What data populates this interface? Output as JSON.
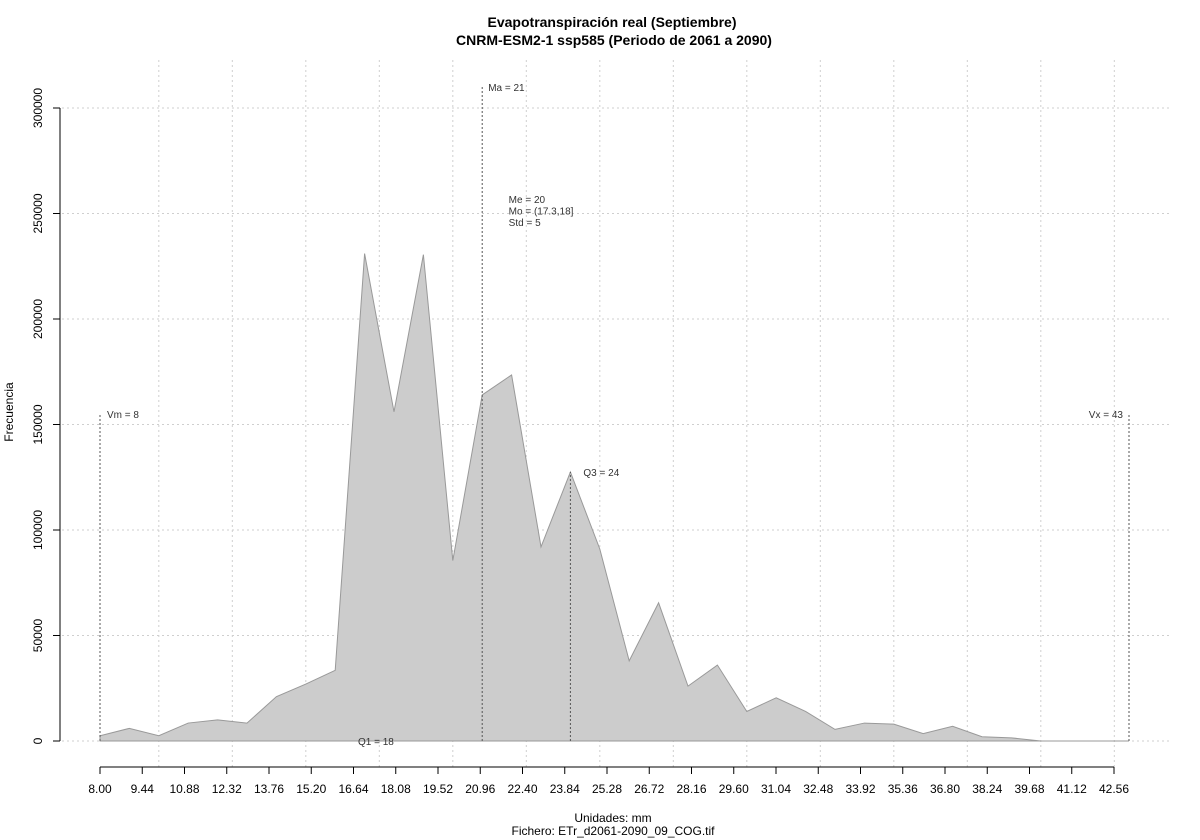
{
  "chart_data": {
    "type": "area",
    "title": "Evapotranspiración real (Septiembre)",
    "subtitle": "CNRM-ESM2-1 ssp585 (Periodo de 2061 a 2090)",
    "xlabel": "Unidades: mm",
    "ylabel": "Frecuencia",
    "footer": "Fichero: ETr_d2061-2090_09_COG.tif",
    "xlim": [
      8.0,
      43.0
    ],
    "ylim": [
      0,
      300000
    ],
    "x_ticks": [
      "8.00",
      "9.44",
      "10.88",
      "12.32",
      "13.76",
      "15.20",
      "16.64",
      "18.08",
      "19.52",
      "20.96",
      "22.40",
      "23.84",
      "25.28",
      "26.72",
      "28.16",
      "29.60",
      "31.04",
      "32.48",
      "33.92",
      "35.36",
      "36.80",
      "38.24",
      "39.68",
      "41.12",
      "42.56"
    ],
    "y_ticks": [
      {
        "value": 0,
        "label": "0"
      },
      {
        "value": 50000,
        "label": "50000"
      },
      {
        "value": 100000,
        "label": "100000"
      },
      {
        "value": 150000,
        "label": "150000"
      },
      {
        "value": 200000,
        "label": "200000"
      },
      {
        "value": 250000,
        "label": "250000"
      },
      {
        "value": 300000,
        "label": "300000"
      }
    ],
    "grid": true,
    "fill_color": "#cccccc",
    "line_color": "#999999",
    "series": [
      {
        "x": [
          8.0,
          9.0,
          10.0,
          11.0,
          12.0,
          13.0,
          14.0,
          15.0,
          16.0,
          17.0,
          18.0,
          19.0,
          20.0,
          21.0,
          22.0,
          23.0,
          24.0,
          25.0,
          26.0,
          27.0,
          28.0,
          29.0,
          30.0,
          31.0,
          32.0,
          33.0,
          34.0,
          35.0,
          36.0,
          37.0,
          38.0,
          39.0,
          40.0,
          41.0,
          42.0,
          43.0
        ],
        "y": [
          2500,
          6000,
          2500,
          8500,
          10000,
          8500,
          21000,
          27000,
          33500,
          231000,
          156000,
          230500,
          85500,
          164000,
          173500,
          92000,
          127500,
          91000,
          38000,
          65500,
          26000,
          36000,
          14000,
          20500,
          14000,
          5500,
          8500,
          8000,
          3500,
          7000,
          2000,
          1500,
          0,
          0,
          0,
          0
        ]
      }
    ],
    "annotations": [
      {
        "label": "Ma = 21",
        "x": 21.0,
        "line_top": 310000
      },
      {
        "label": "Q3 = 24",
        "x": 24.0,
        "line_top": 127500
      },
      {
        "label": "Vm = 8",
        "x": 8.0,
        "line_top": 155000
      },
      {
        "label": "Vx = 43",
        "x": 43.0,
        "line_top": 155000
      },
      {
        "label": "Q1 = 18",
        "x": 18.0
      },
      {
        "label": "Me = 20",
        "x": 21.9,
        "y": 255000
      },
      {
        "label": "Mo = (17.3,18]",
        "x": 21.9,
        "y": 249500
      },
      {
        "label": "Std = 5",
        "x": 21.9,
        "y": 244000
      }
    ]
  }
}
